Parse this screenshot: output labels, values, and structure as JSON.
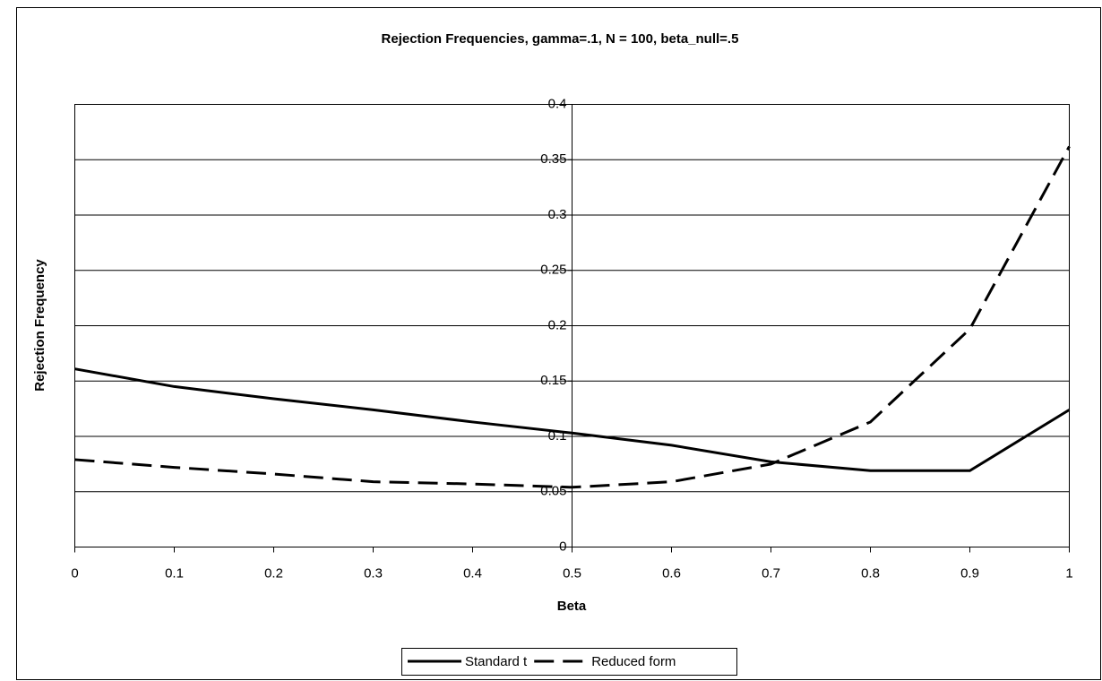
{
  "chart_data": {
    "type": "line",
    "title": "Rejection Frequencies, gamma=.1, N = 100, beta_null=.5",
    "x_label": "Beta",
    "y_label": "Rejection Frequency",
    "x": [
      0,
      0.1,
      0.2,
      0.3,
      0.4,
      0.5,
      0.6,
      0.7,
      0.8,
      0.9,
      1
    ],
    "series": [
      {
        "name": "Standard t",
        "color": "#000000",
        "line_style": "solid",
        "values": [
          0.161,
          0.145,
          0.134,
          0.124,
          0.113,
          0.103,
          0.092,
          0.077,
          0.069,
          0.069,
          0.124
        ]
      },
      {
        "name": "Reduced form",
        "color": "#000000",
        "line_style": "dashed",
        "values": [
          0.079,
          0.072,
          0.066,
          0.059,
          0.057,
          0.054,
          0.059,
          0.075,
          0.113,
          0.197,
          0.362
        ]
      }
    ],
    "xlim": [
      0,
      1
    ],
    "xticks": [
      0,
      0.1,
      0.2,
      0.3,
      0.4,
      0.5,
      0.6,
      0.7,
      0.8,
      0.9,
      1
    ],
    "ylim": [
      0,
      0.4
    ],
    "yticks": [
      0,
      0.05,
      0.1,
      0.15,
      0.2,
      0.25,
      0.3,
      0.35,
      0.4
    ],
    "y_axis_at_x": 0.5,
    "grid": true,
    "legend": "bottom"
  }
}
